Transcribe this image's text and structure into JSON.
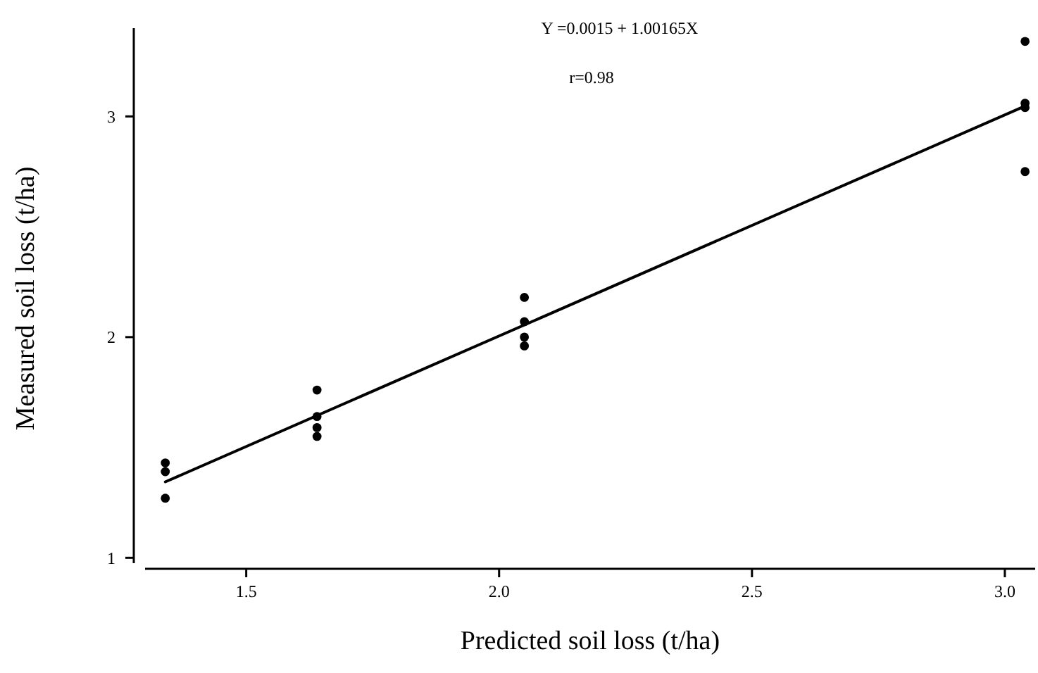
{
  "chart_data": {
    "type": "scatter",
    "xlabel": "Predicted soil loss (t/ha)",
    "ylabel": "Measured soil loss (t/ha)",
    "xlim": [
      1.3,
      3.06
    ],
    "xticks": [
      {
        "value": 1.5,
        "label": "1.5"
      },
      {
        "value": 2,
        "label": "2.0"
      },
      {
        "value": 2.5,
        "label": "2.5"
      },
      {
        "value": 3,
        "label": "3.0"
      }
    ],
    "ylim": [
      0.95,
      3.4
    ],
    "yticks": [
      1,
      2,
      3
    ],
    "grid": false,
    "annotations": [
      "Y =0.0015 + 1.00165X",
      "r=0.98"
    ],
    "series": [
      {
        "color": "#000000",
        "marker": "circle",
        "x": [
          1.34,
          1.34,
          1.34,
          1.64,
          1.64,
          1.64,
          1.64,
          2.05,
          2.05,
          2.05,
          2.05,
          3.04,
          3.04,
          3.04,
          3.04
        ],
        "values": [
          1.43,
          1.39,
          1.27,
          1.76,
          1.64,
          1.59,
          1.55,
          2.18,
          2.07,
          2.0,
          1.96,
          3.34,
          3.06,
          3.04,
          2.75
        ]
      },
      {
        "type": "line",
        "color": "#000000",
        "marker": "none",
        "line_style": "solid",
        "x": [
          1.34,
          3.04
        ],
        "values": [
          1.344,
          3.047
        ]
      }
    ]
  }
}
